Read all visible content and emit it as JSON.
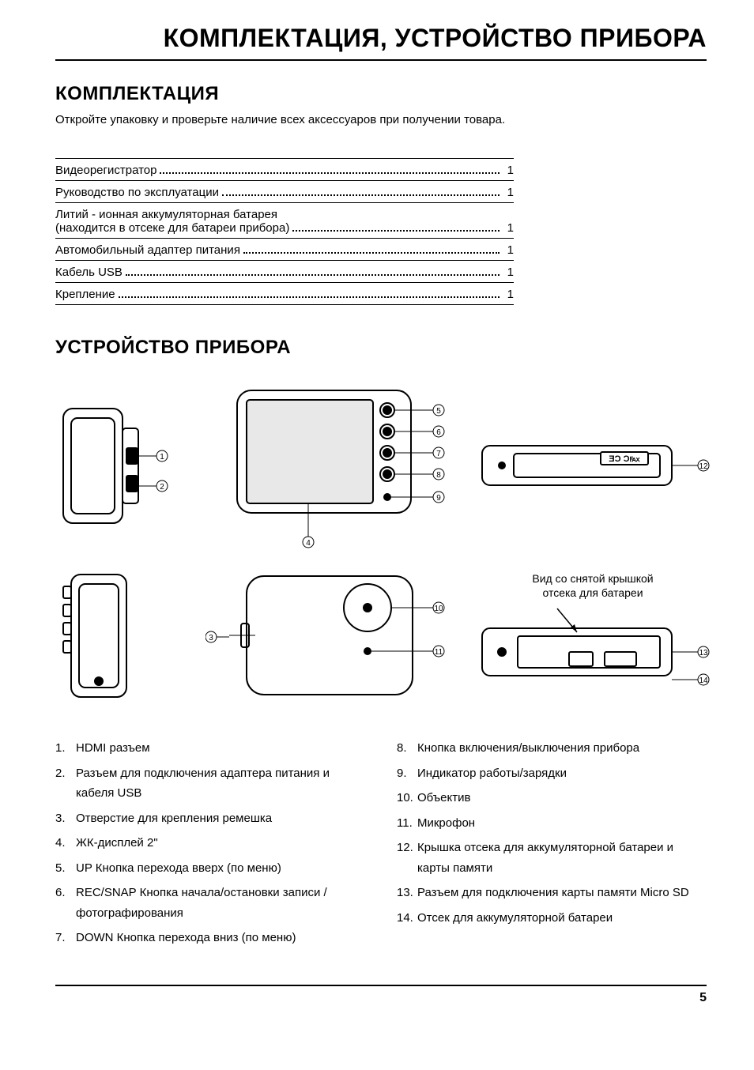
{
  "page": {
    "title": "КОМПЛЕКТАЦИЯ, УСТРОЙСТВО ПРИБОРА",
    "number": "5"
  },
  "kit": {
    "heading": "КОМПЛЕКТАЦИЯ",
    "intro": "Откройте упаковку и проверьте наличие всех аксессуаров при получении товара.",
    "items": [
      {
        "label": "Видеорегистратор",
        "qty": "1"
      },
      {
        "label": "Руководство по эксплуатации",
        "qty": "1"
      },
      {
        "label": "Литий - ионная аккумуляторная батарея",
        "sub": "(находится в отсеке для батареи прибора)",
        "qty": "1"
      },
      {
        "label": "Автомобильный адаптер питания",
        "qty": "1"
      },
      {
        "label": "Кабель USB",
        "qty": "1"
      },
      {
        "label": "Крепление",
        "qty": "1"
      }
    ]
  },
  "device": {
    "heading": "УСТРОЙСТВО ПРИБОРА",
    "battery_caption_l1": "Вид со снятой крышкой",
    "battery_caption_l2": "отсека для батареи",
    "callouts": [
      "1",
      "2",
      "3",
      "4",
      "5",
      "6",
      "7",
      "8",
      "9",
      "10",
      "11",
      "12",
      "13",
      "14"
    ]
  },
  "legend": {
    "left": [
      {
        "n": "1.",
        "t": "HDMI разъем"
      },
      {
        "n": "2.",
        "t": "Разъем для подключения адаптера питания и кабеля USB"
      },
      {
        "n": "3.",
        "t": "Отверстие для крепления ремешка"
      },
      {
        "n": "4.",
        "t": "ЖК-дисплей 2\""
      },
      {
        "n": "5.",
        "t": "UP Кнопка перехода вверх (по меню)"
      },
      {
        "n": "6.",
        "t": "REC/SNAP Кнопка начала/остановки записи / фотографирования"
      },
      {
        "n": "7.",
        "t": "DOWN Кнопка перехода вниз (по меню)"
      }
    ],
    "right": [
      {
        "n": "8.",
        "t": "Кнопка включения/выключения прибора"
      },
      {
        "n": "9.",
        "t": "Индикатор работы/зарядки"
      },
      {
        "n": "10.",
        "t": "Объектив"
      },
      {
        "n": "11.",
        "t": "Микрофон"
      },
      {
        "n": "12.",
        "t": "Крышка отсека для аккумуляторной батареи и карты памяти"
      },
      {
        "n": "13.",
        "t": "Разъем для подключения карты памяти  Micro SD"
      },
      {
        "n": "14.",
        "t": "Отсек для аккумуляторной батареи"
      }
    ]
  },
  "style": {
    "page_bg": "#ffffff",
    "text_color": "#000000",
    "line_color": "#000000",
    "title_fontsize": 32,
    "heading_fontsize": 24,
    "body_fontsize": 15,
    "diagram_stroke": "#000000",
    "diagram_stroke_width": 2,
    "callout_circle_r": 7
  }
}
